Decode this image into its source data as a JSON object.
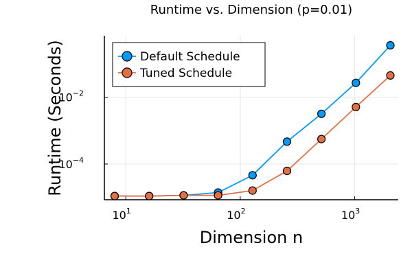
{
  "chart_data": {
    "type": "line",
    "title": "Runtime vs. Dimension (p=0.01)",
    "xlabel": "Dimension n",
    "ylabel": "Runtime (Seconds)",
    "xscale": "log10",
    "yscale": "log10",
    "xlim": [
      6.5,
      2400
    ],
    "ylim": [
      8.5e-06,
      0.7
    ],
    "xticks": [
      {
        "value": 10,
        "base": "10",
        "exp": "1"
      },
      {
        "value": 100,
        "base": "10",
        "exp": "2"
      },
      {
        "value": 1000,
        "base": "10",
        "exp": "3"
      }
    ],
    "yticks": [
      {
        "value": 0.0001,
        "base": "10",
        "exp": "−4"
      },
      {
        "value": 0.01,
        "base": "10",
        "exp": "−2"
      }
    ],
    "grid": true,
    "legend": {
      "position": "top-left"
    },
    "x": [
      8,
      16,
      32,
      64,
      128,
      256,
      512,
      1024,
      2048
    ],
    "series": [
      {
        "name": "Default Schedule",
        "color": "#009af9",
        "values": [
          1.1e-05,
          1.1e-05,
          1.15e-05,
          1.4e-05,
          4.6e-05,
          0.00047,
          0.0032,
          0.027,
          0.36
        ]
      },
      {
        "name": "Tuned Schedule",
        "color": "#e26f46",
        "values": [
          1.1e-05,
          1.1e-05,
          1.15e-05,
          1.15e-05,
          1.6e-05,
          6.2e-05,
          0.00056,
          0.0051,
          0.045
        ]
      }
    ]
  }
}
